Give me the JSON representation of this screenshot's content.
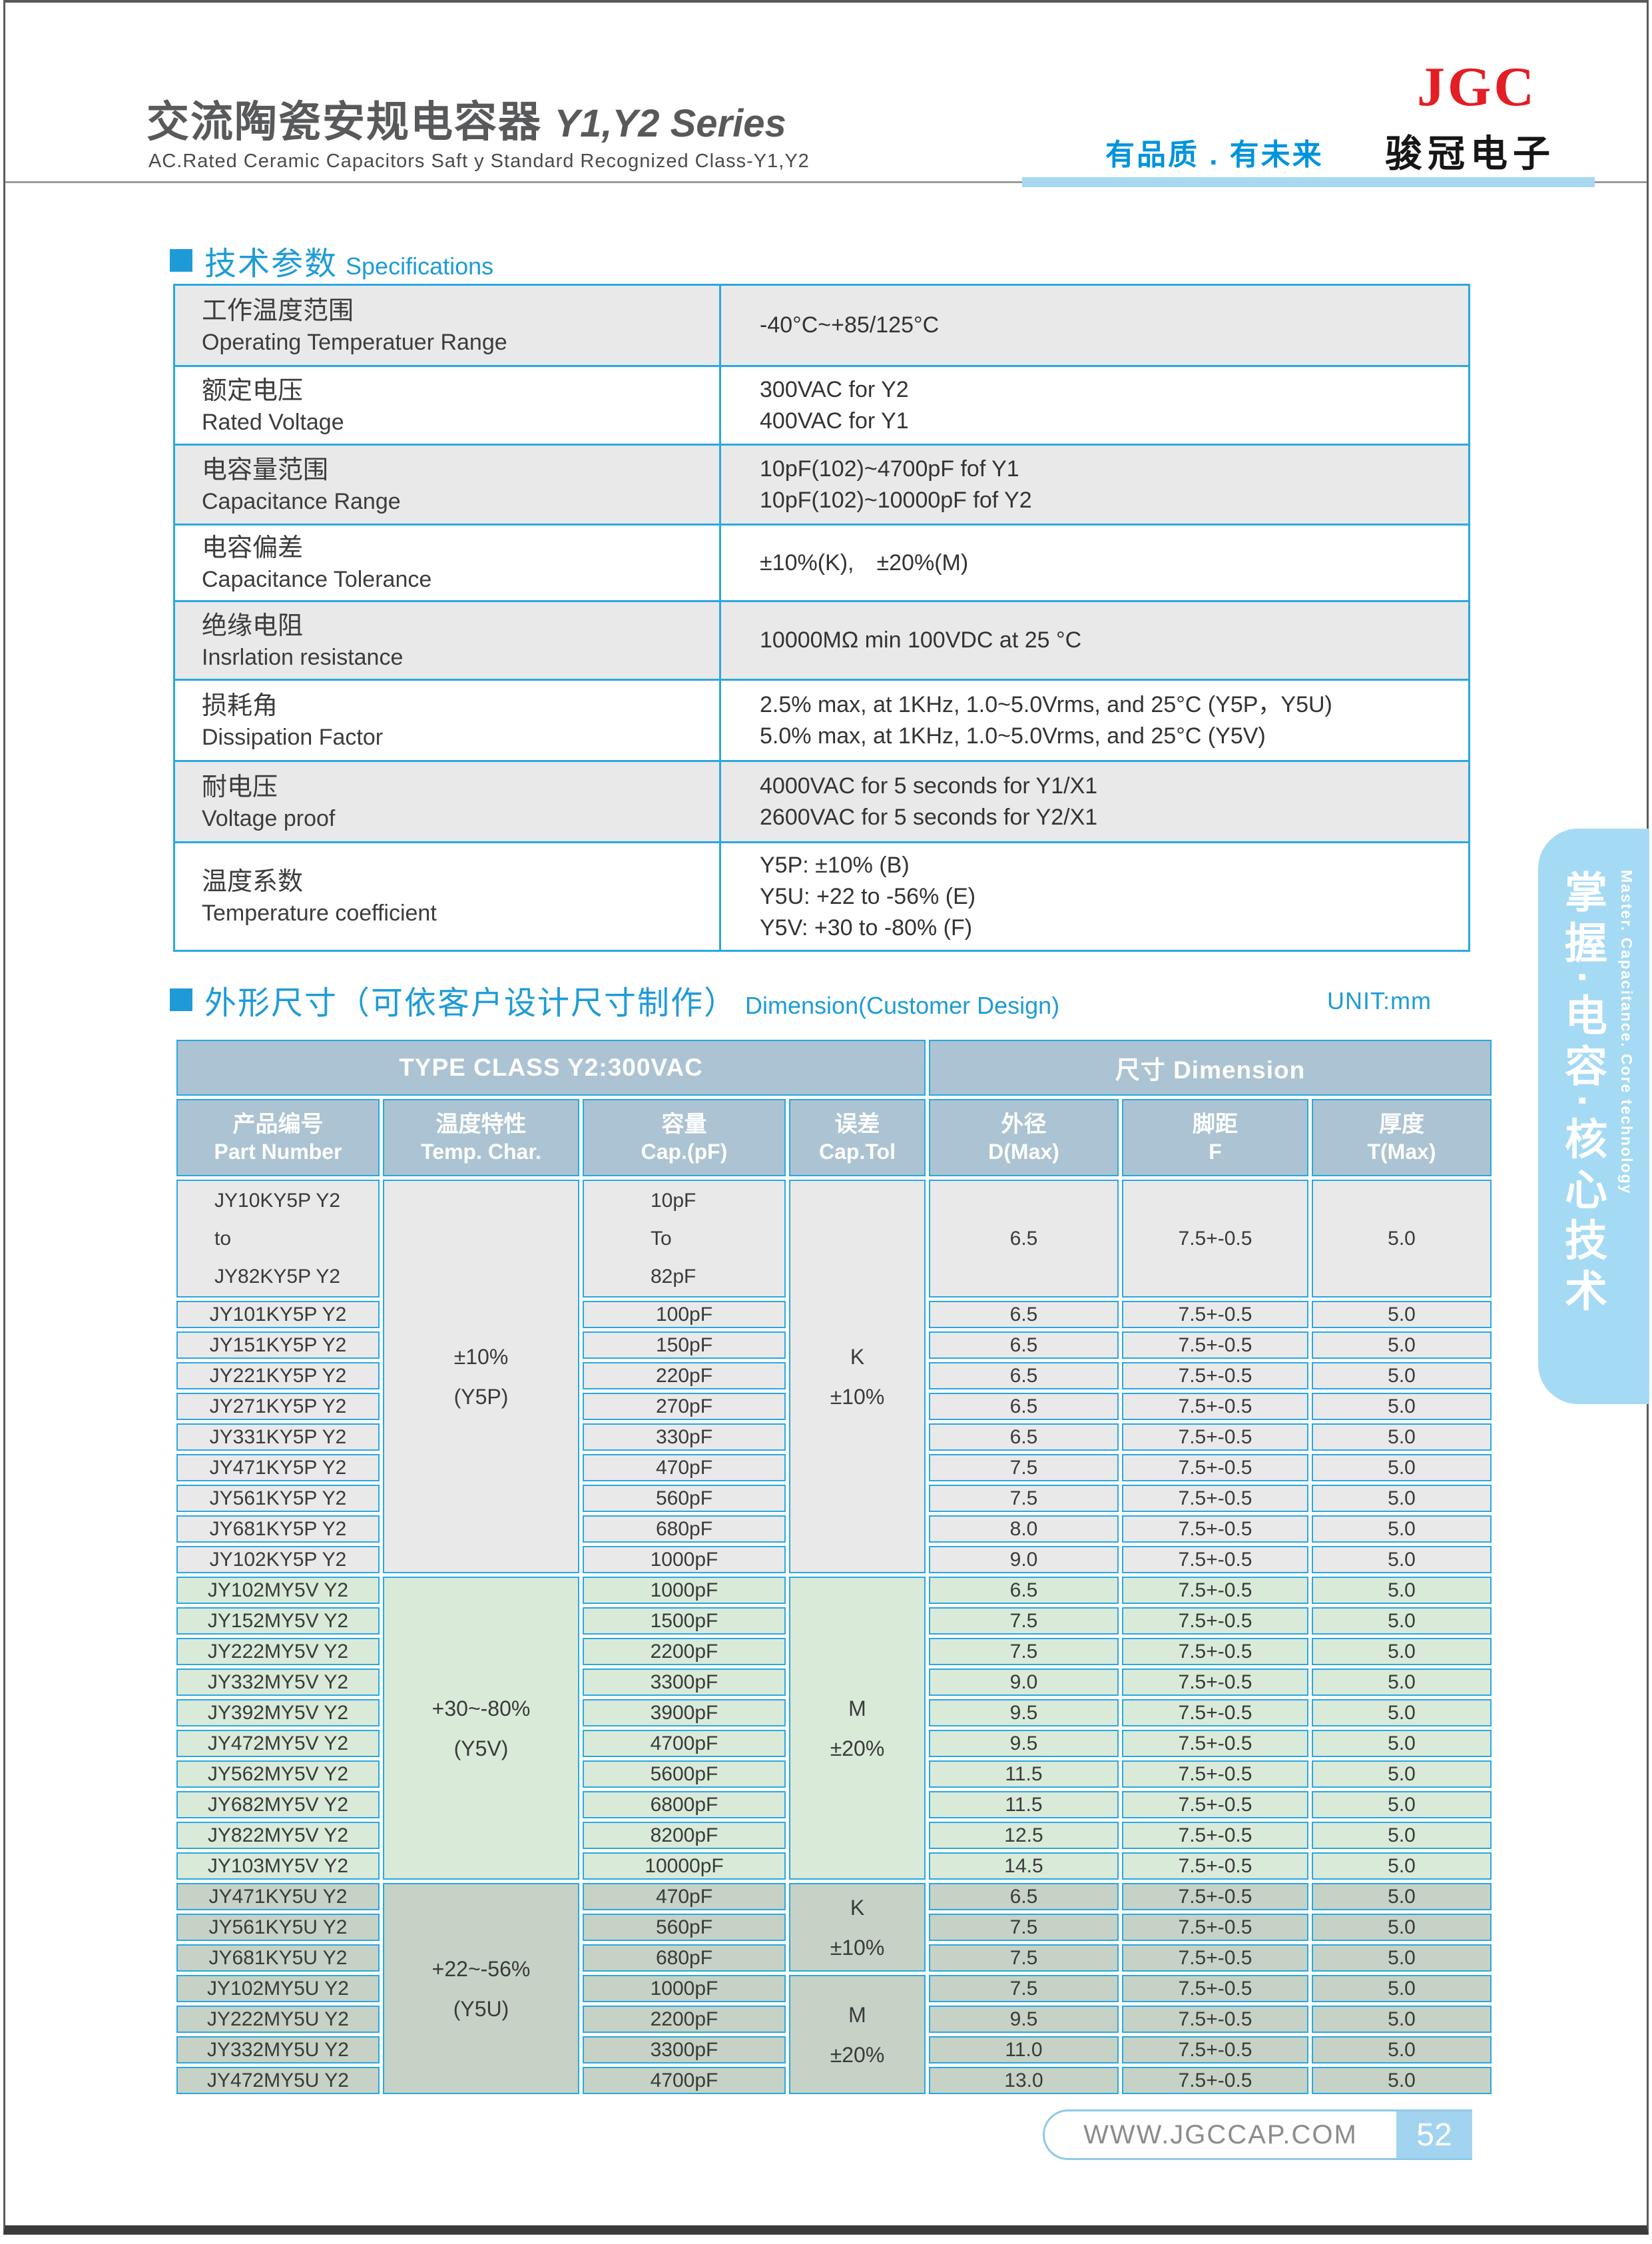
{
  "header": {
    "title_cn": "交流陶瓷安规电容器",
    "title_en": "Y1,Y2 Series",
    "subtitle": "AC.Rated Ceramic Capacitors Saft y Standard Recognized Class-Y1,Y2",
    "slogan": "有品质 . 有未来",
    "logo_text": "JGC",
    "company": "骏冠电子"
  },
  "specs": {
    "heading_cn": "技术参数",
    "heading_en": "Specifications",
    "rows": [
      {
        "label_cn": "工作温度范围",
        "label_en": "Operating Temperatuer Range",
        "values": [
          "-40°C~+85/125°C"
        ]
      },
      {
        "label_cn": "额定电压",
        "label_en": "Rated Voltage",
        "values": [
          "300VAC for Y2",
          "400VAC for Y1"
        ]
      },
      {
        "label_cn": "电容量范围",
        "label_en": "Capacitance Range",
        "values": [
          "10pF(102)~4700pF fof Y1",
          "10pF(102)~10000pF fof Y2"
        ]
      },
      {
        "label_cn": "电容偏差",
        "label_en": "Capacitance Tolerance",
        "values": [
          "±10%(K), ±20%(M)"
        ]
      },
      {
        "label_cn": "绝缘电阻",
        "label_en": "Insrlation resistance",
        "values": [
          "10000MΩ min 100VDC at 25 °C"
        ]
      },
      {
        "label_cn": "损耗角",
        "label_en": "Dissipation Factor",
        "values": [
          "2.5% max, at 1KHz, 1.0~5.0Vrms, and 25°C (Y5P，Y5U)",
          "5.0% max, at 1KHz, 1.0~5.0Vrms, and 25°C (Y5V)"
        ]
      },
      {
        "label_cn": "耐电压",
        "label_en": "Voltage proof",
        "values": [
          "4000VAC for 5 seconds for Y1/X1",
          "2600VAC for 5 seconds for Y2/X1"
        ]
      },
      {
        "label_cn": "温度系数",
        "label_en": "Temperature coefficient",
        "values": [
          "Y5P: ±10% (B)",
          "Y5U: +22 to -56% (E)",
          "Y5V: +30 to -80% (F)"
        ]
      }
    ]
  },
  "dimensions": {
    "heading_cn": "外形尺寸（可依客户设计尺寸制作）",
    "heading_en": "Dimension(Customer Design)",
    "unit": "UNIT:mm",
    "table": {
      "group_header_left": "TYPE CLASS Y2:300VAC",
      "group_header_right": "尺寸 Dimension",
      "columns": [
        {
          "cn": "产品编号",
          "en": "Part Number"
        },
        {
          "cn": "温度特性",
          "en": "Temp. Char."
        },
        {
          "cn": "容量",
          "en": "Cap.(pF)"
        },
        {
          "cn": "误差",
          "en": "Cap.Tol"
        },
        {
          "cn": "外径",
          "en": "D(Max)"
        },
        {
          "cn": "脚距",
          "en": "F"
        },
        {
          "cn": "厚度",
          "en": "T(Max)"
        }
      ],
      "groups": [
        {
          "bg": "#e9e9e9",
          "temp_char": [
            "±10%",
            "(Y5P)"
          ],
          "tolerance_blocks": [
            {
              "lines": [
                "K",
                "±10%"
              ],
              "span": 10
            }
          ],
          "rows": [
            {
              "part": [
                "JY10KY5P Y2",
                "to",
                "JY82KY5P Y2"
              ],
              "cap": [
                "10pF",
                "To",
                "82pF"
              ],
              "d": "6.5",
              "f": "7.5+-0.5",
              "t": "5.0"
            },
            {
              "part": "JY101KY5P Y2",
              "cap": "100pF",
              "d": "6.5",
              "f": "7.5+-0.5",
              "t": "5.0"
            },
            {
              "part": "JY151KY5P Y2",
              "cap": "150pF",
              "d": "6.5",
              "f": "7.5+-0.5",
              "t": "5.0"
            },
            {
              "part": "JY221KY5P Y2",
              "cap": "220pF",
              "d": "6.5",
              "f": "7.5+-0.5",
              "t": "5.0"
            },
            {
              "part": "JY271KY5P Y2",
              "cap": "270pF",
              "d": "6.5",
              "f": "7.5+-0.5",
              "t": "5.0"
            },
            {
              "part": "JY331KY5P Y2",
              "cap": "330pF",
              "d": "6.5",
              "f": "7.5+-0.5",
              "t": "5.0"
            },
            {
              "part": "JY471KY5P Y2",
              "cap": "470pF",
              "d": "7.5",
              "f": "7.5+-0.5",
              "t": "5.0"
            },
            {
              "part": "JY561KY5P Y2",
              "cap": "560pF",
              "d": "7.5",
              "f": "7.5+-0.5",
              "t": "5.0"
            },
            {
              "part": "JY681KY5P Y2",
              "cap": "680pF",
              "d": "8.0",
              "f": "7.5+-0.5",
              "t": "5.0"
            },
            {
              "part": "JY102KY5P Y2",
              "cap": "1000pF",
              "d": "9.0",
              "f": "7.5+-0.5",
              "t": "5.0"
            }
          ]
        },
        {
          "bg": "#d9ead9",
          "temp_char": [
            "+30~-80%",
            "(Y5V)"
          ],
          "tolerance_blocks": [
            {
              "lines": [
                "M",
                "±20%"
              ],
              "span": 10
            }
          ],
          "rows": [
            {
              "part": "JY102MY5V Y2",
              "cap": "1000pF",
              "d": "6.5",
              "f": "7.5+-0.5",
              "t": "5.0"
            },
            {
              "part": "JY152MY5V Y2",
              "cap": "1500pF",
              "d": "7.5",
              "f": "7.5+-0.5",
              "t": "5.0"
            },
            {
              "part": "JY222MY5V Y2",
              "cap": "2200pF",
              "d": "7.5",
              "f": "7.5+-0.5",
              "t": "5.0"
            },
            {
              "part": "JY332MY5V Y2",
              "cap": "3300pF",
              "d": "9.0",
              "f": "7.5+-0.5",
              "t": "5.0"
            },
            {
              "part": "JY392MY5V Y2",
              "cap": "3900pF",
              "d": "9.5",
              "f": "7.5+-0.5",
              "t": "5.0"
            },
            {
              "part": "JY472MY5V Y2",
              "cap": "4700pF",
              "d": "9.5",
              "f": "7.5+-0.5",
              "t": "5.0"
            },
            {
              "part": "JY562MY5V Y2",
              "cap": "5600pF",
              "d": "11.5",
              "f": "7.5+-0.5",
              "t": "5.0"
            },
            {
              "part": "JY682MY5V Y2",
              "cap": "6800pF",
              "d": "11.5",
              "f": "7.5+-0.5",
              "t": "5.0"
            },
            {
              "part": "JY822MY5V Y2",
              "cap": "8200pF",
              "d": "12.5",
              "f": "7.5+-0.5",
              "t": "5.0"
            },
            {
              "part": "JY103MY5V Y2",
              "cap": "10000pF",
              "d": "14.5",
              "f": "7.5+-0.5",
              "t": "5.0"
            }
          ]
        },
        {
          "bg": "#c5d2c5",
          "temp_char": [
            "+22~-56%",
            "(Y5U)"
          ],
          "tolerance_blocks": [
            {
              "lines": [
                "K",
                "±10%"
              ],
              "span": 3
            },
            {
              "lines": [
                "M",
                "±20%"
              ],
              "span": 4
            }
          ],
          "rows": [
            {
              "part": "JY471KY5U Y2",
              "cap": "470pF",
              "d": "6.5",
              "f": "7.5+-0.5",
              "t": "5.0"
            },
            {
              "part": "JY561KY5U Y2",
              "cap": "560pF",
              "d": "7.5",
              "f": "7.5+-0.5",
              "t": "5.0"
            },
            {
              "part": "JY681KY5U Y2",
              "cap": "680pF",
              "d": "7.5",
              "f": "7.5+-0.5",
              "t": "5.0"
            },
            {
              "part": "JY102MY5U Y2",
              "cap": "1000pF",
              "d": "7.5",
              "f": "7.5+-0.5",
              "t": "5.0"
            },
            {
              "part": "JY222MY5U Y2",
              "cap": "2200pF",
              "d": "9.5",
              "f": "7.5+-0.5",
              "t": "5.0"
            },
            {
              "part": "JY332MY5U Y2",
              "cap": "3300pF",
              "d": "11.0",
              "f": "7.5+-0.5",
              "t": "5.0"
            },
            {
              "part": "JY472MY5U Y2",
              "cap": "4700pF",
              "d": "13.0",
              "f": "7.5+-0.5",
              "t": "5.0"
            }
          ]
        }
      ]
    }
  },
  "sidebar": {
    "cn": "掌握·电容·核心技术",
    "en": "Master. Capacitance. Core technology"
  },
  "footer": {
    "website": "WWW.JGCCAP.COM",
    "page_number": "52"
  },
  "colors": {
    "accent_blue": "#1e9bd7",
    "table_border_blue": "#29a8e0",
    "header_cell_blue_gray": "#abc3d2",
    "row_gray": "#e9e9e9",
    "row_green": "#d9ead9",
    "row_gray_green": "#c5d2c5",
    "sidebar_blue": "#a5daf4",
    "logo_red": "#e31e24",
    "slogan_blue": "#0093dd",
    "rule_blue": "#a8d8f0",
    "page_badge_blue": "#a2d4f0"
  }
}
